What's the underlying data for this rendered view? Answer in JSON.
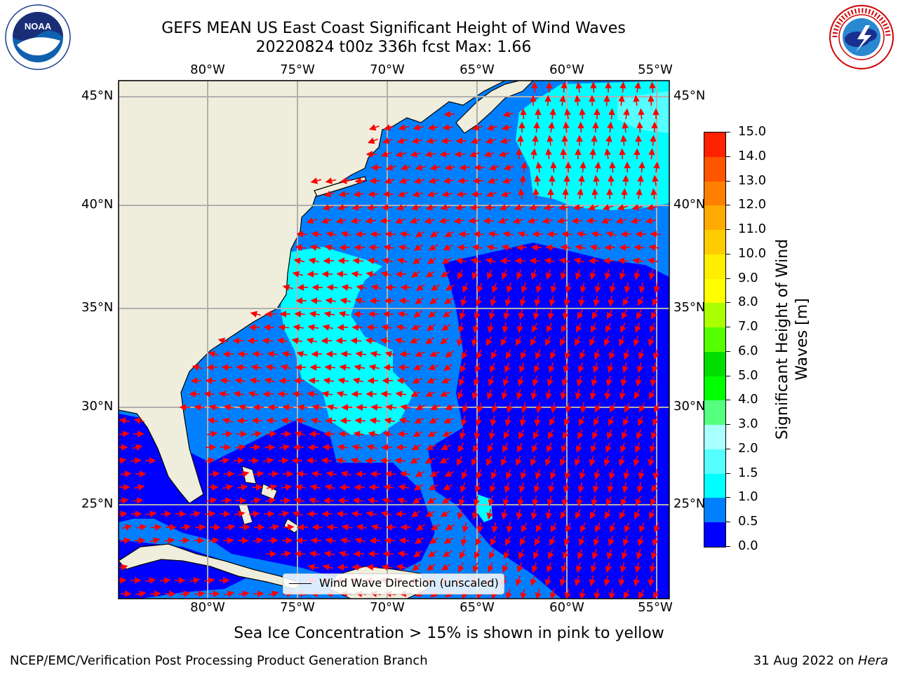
{
  "title": {
    "line1": "GEFS MEAN US East Coast Significant Height of Wind Waves",
    "line2": "20220824 t00z 336h fcst   Max: 1.66"
  },
  "logos": {
    "left": {
      "icon": "noaa-logo",
      "text": "NOAA"
    },
    "right": {
      "icon": "nws-logo",
      "text": "NATIONAL WEATHER SERVICE"
    }
  },
  "map": {
    "lon_labels": [
      "80°W",
      "75°W",
      "70°W",
      "65°W",
      "60°W",
      "55°W"
    ],
    "lat_labels": [
      "45°N",
      "40°N",
      "35°N",
      "30°N",
      "25°N"
    ],
    "legend_label": "Wind Wave Direction (unscaled)",
    "colors": {
      "land": "#efeddb",
      "coast": "#000000",
      "grid": "#b0b0b0",
      "arrow": "#ff0000",
      "wave_0_0p5": "#0000ff",
      "wave_0p5_1": "#0080ff",
      "wave_1_1p5": "#00ffff",
      "wave_1p5_2": "#55ffff"
    }
  },
  "colorbar": {
    "label": "Significant Height of Wind Waves [m]",
    "ticks": [
      "0.0",
      "0.5",
      "1.0",
      "1.5",
      "2.0",
      "3.0",
      "4.0",
      "5.0",
      "6.0",
      "7.0",
      "8.0",
      "9.0",
      "10.0",
      "11.0",
      "12.0",
      "13.0",
      "14.0",
      "15.0"
    ],
    "colors": [
      "#0000ff",
      "#0080ff",
      "#00ffff",
      "#55ffff",
      "#aaffff",
      "#55ff80",
      "#00ff00",
      "#00dd00",
      "#55ff00",
      "#aaff00",
      "#ffff00",
      "#ffee00",
      "#ffcc00",
      "#ffaa00",
      "#ff8000",
      "#ff5500",
      "#ff2200"
    ]
  },
  "subnote": "Sea Ice Concentration > 15% is shown in pink to yellow",
  "footer": {
    "left": "NCEP/EMC/Verification Post Processing Product Generation Branch",
    "right_date": "31 Aug 2022 on ",
    "right_machine": "Hera"
  }
}
